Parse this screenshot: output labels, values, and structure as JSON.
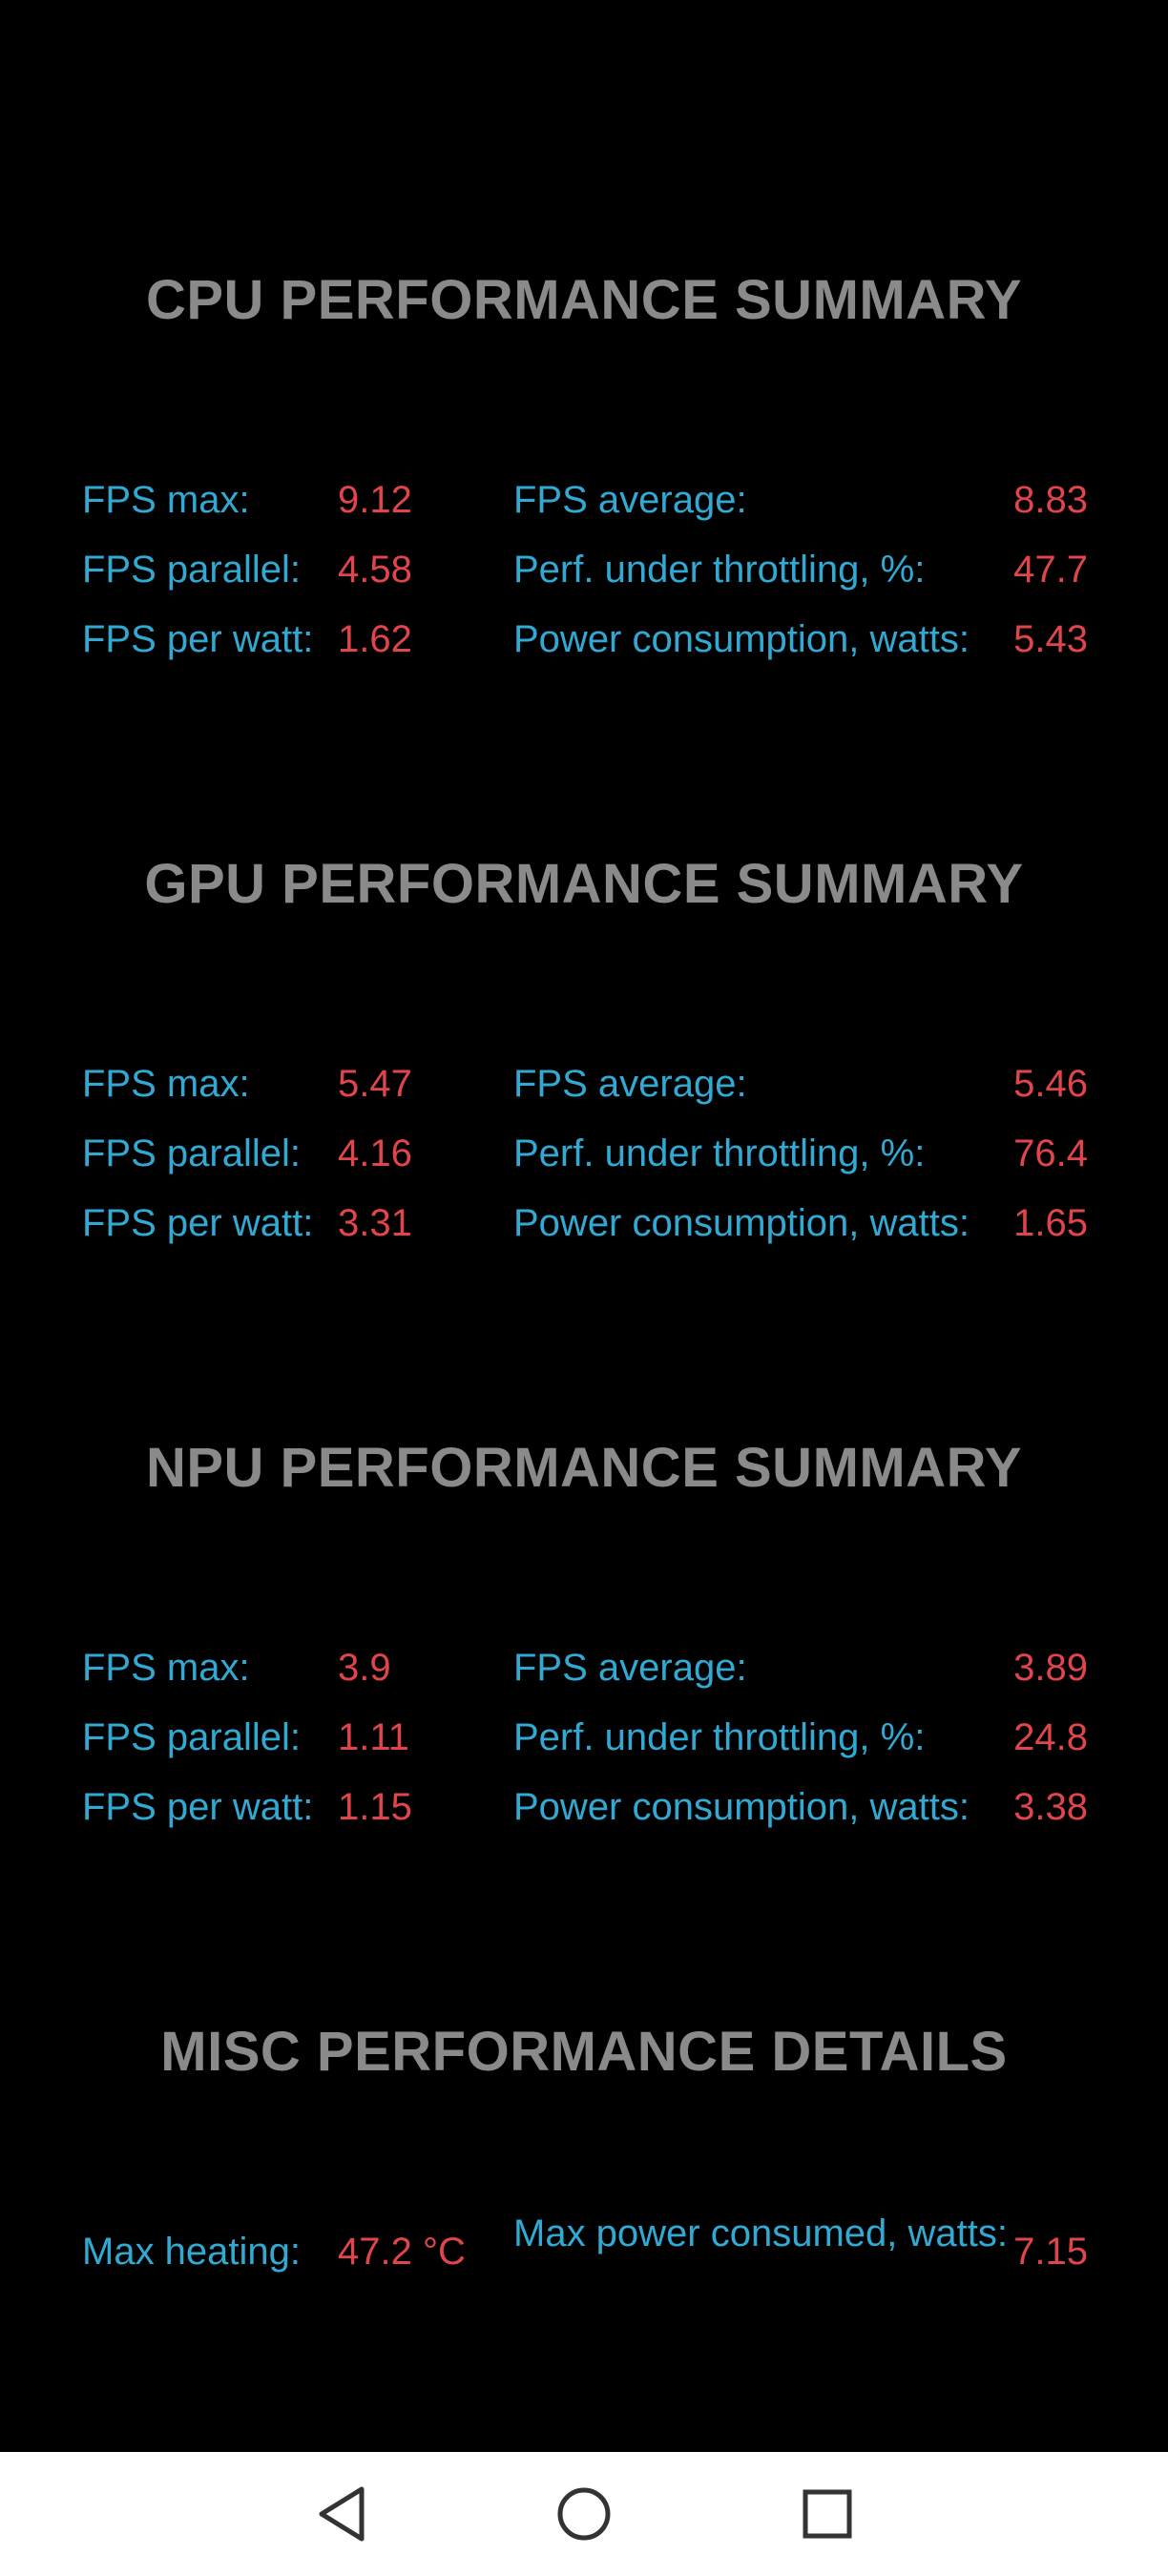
{
  "cpu": {
    "title": "CPU PERFORMANCE SUMMARY",
    "rows": [
      {
        "left_label": "FPS max:",
        "left_value": "9.12",
        "right_label": "FPS average:",
        "right_value": "8.83"
      },
      {
        "left_label": "FPS parallel:",
        "left_value": "4.58",
        "right_label": "Perf. under throttling, %:",
        "right_value": "47.7"
      },
      {
        "left_label": "FPS per watt:",
        "left_value": "1.62",
        "right_label": "Power consumption, watts:",
        "right_value": "5.43"
      }
    ]
  },
  "gpu": {
    "title": "GPU PERFORMANCE SUMMARY",
    "rows": [
      {
        "left_label": "FPS max:",
        "left_value": "5.47",
        "right_label": "FPS average:",
        "right_value": "5.46"
      },
      {
        "left_label": "FPS parallel:",
        "left_value": "4.16",
        "right_label": "Perf. under throttling, %:",
        "right_value": "76.4"
      },
      {
        "left_label": "FPS per watt:",
        "left_value": "3.31",
        "right_label": "Power consumption, watts:",
        "right_value": "1.65"
      }
    ]
  },
  "npu": {
    "title": "NPU PERFORMANCE SUMMARY",
    "rows": [
      {
        "left_label": "FPS max:",
        "left_value": "3.9",
        "right_label": "FPS average:",
        "right_value": "3.89"
      },
      {
        "left_label": "FPS parallel:",
        "left_value": "1.11",
        "right_label": "Perf. under throttling, %:",
        "right_value": "24.8"
      },
      {
        "left_label": "FPS per watt:",
        "left_value": "1.15",
        "right_label": "Power consumption, watts:",
        "right_value": "3.38"
      }
    ]
  },
  "misc": {
    "title": "MISC PERFORMANCE DETAILS",
    "rows": [
      {
        "left_label": "Max heating:",
        "left_value": "47.2 °C",
        "right_label": "Max power consumed, watts:",
        "right_value": "7.15"
      }
    ]
  },
  "colors": {
    "background": "#000000",
    "title": "#8a8a8a",
    "label": "#31a9d3",
    "value": "#e0454c",
    "navbar": "#ffffff",
    "nav_icon": "#333333"
  },
  "navbar": {
    "back_icon": "back-triangle-icon",
    "home_icon": "home-circle-icon",
    "recents_icon": "recents-square-icon"
  }
}
